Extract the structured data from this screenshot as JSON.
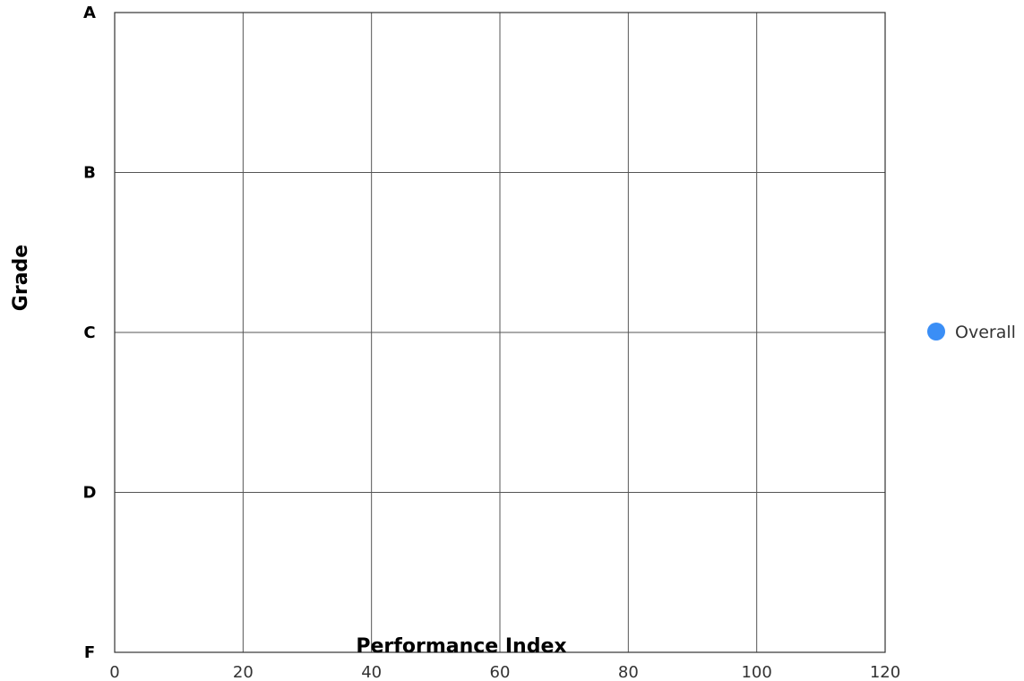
{
  "chart_data": {
    "type": "scatter",
    "xlabel": "Performance Index",
    "ylabel": "Grade",
    "xlim": [
      0,
      120
    ],
    "x_ticks": [
      "0",
      "20",
      "40",
      "60",
      "80",
      "100",
      "120"
    ],
    "y_categories": [
      "F",
      "D",
      "C",
      "B",
      "A"
    ],
    "grid": true,
    "legend_position": "right",
    "series": [
      {
        "name": "Overall",
        "color": "#3a8ef6",
        "points": []
      }
    ]
  }
}
